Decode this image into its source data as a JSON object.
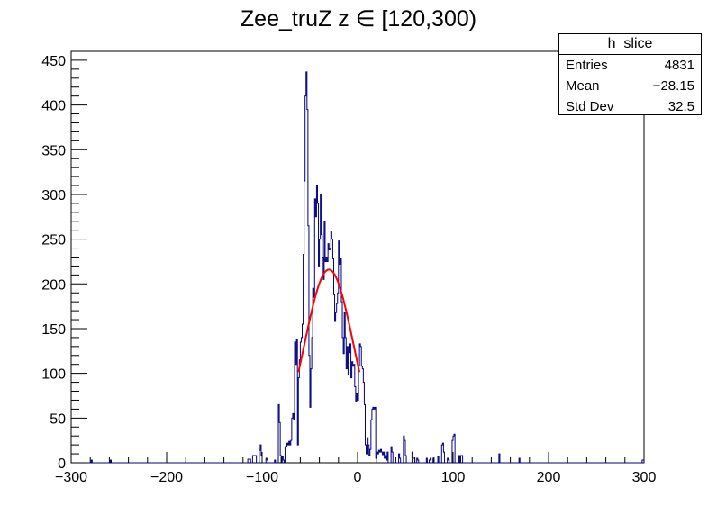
{
  "chart_data": {
    "type": "bar",
    "title": "Zee_truZ z  ∈ [120,300)",
    "xlabel": "",
    "ylabel": "",
    "xlim": [
      -300,
      300
    ],
    "ylim": [
      0,
      460
    ],
    "x_ticks": [
      -300,
      -200,
      -100,
      0,
      100,
      200,
      300
    ],
    "x_tick_labels": [
      "−300",
      "−200",
      "−100",
      "0",
      "100",
      "200",
      "300"
    ],
    "y_ticks": [
      0,
      50,
      100,
      150,
      200,
      250,
      300,
      350,
      400,
      450
    ],
    "y_tick_labels": [
      "0",
      "50",
      "100",
      "150",
      "200",
      "250",
      "300",
      "350",
      "400",
      "450"
    ],
    "grid": false,
    "histogram_color": "#000080",
    "fit_color": "#ff0000",
    "histogram": {
      "name": "h_slice",
      "bins": [
        [
          -300,
          0
        ],
        [
          -279,
          3
        ],
        [
          -278,
          0
        ],
        [
          -259,
          3
        ],
        [
          -258,
          0
        ],
        [
          -115,
          4
        ],
        [
          -112,
          0
        ],
        [
          -110,
          8
        ],
        [
          -106,
          0
        ],
        [
          -103,
          14
        ],
        [
          -102,
          20
        ],
        [
          -101,
          8
        ],
        [
          -100,
          0
        ],
        [
          -96,
          5
        ],
        [
          -95,
          3
        ],
        [
          -94,
          0
        ],
        [
          -87,
          3
        ],
        [
          -86,
          0
        ],
        [
          -83,
          65
        ],
        [
          -82,
          45
        ],
        [
          -81,
          8
        ],
        [
          -80,
          0
        ],
        [
          -79,
          7
        ],
        [
          -78,
          3
        ],
        [
          -77,
          0
        ],
        [
          -76,
          18
        ],
        [
          -74,
          22
        ],
        [
          -73,
          20
        ],
        [
          -72,
          24
        ],
        [
          -71,
          20
        ],
        [
          -70,
          25
        ],
        [
          -69,
          50
        ],
        [
          -68,
          55
        ],
        [
          -67,
          48
        ],
        [
          -66,
          135
        ],
        [
          -65,
          110
        ],
        [
          -64,
          138
        ],
        [
          -63,
          20
        ],
        [
          -62,
          95
        ],
        [
          -61,
          115
        ],
        [
          -60,
          135
        ],
        [
          -59,
          140
        ],
        [
          -58,
          155
        ],
        [
          -57,
          233
        ],
        [
          -56,
          315
        ],
        [
          -55,
          410
        ],
        [
          -54,
          437
        ],
        [
          -53,
          395
        ],
        [
          -52,
          265
        ],
        [
          -51,
          120
        ],
        [
          -50,
          62
        ],
        [
          -49,
          105
        ],
        [
          -48,
          140
        ],
        [
          -47,
          195
        ],
        [
          -46,
          185
        ],
        [
          -45,
          295
        ],
        [
          -44,
          275
        ],
        [
          -43,
          310
        ],
        [
          -42,
          290
        ],
        [
          -41,
          220
        ],
        [
          -40,
          250
        ],
        [
          -39,
          300
        ],
        [
          -38,
          255
        ],
        [
          -37,
          230
        ],
        [
          -36,
          205
        ],
        [
          -35,
          270
        ],
        [
          -34,
          225
        ],
        [
          -33,
          230
        ],
        [
          -32,
          225
        ],
        [
          -31,
          245
        ],
        [
          -30,
          238
        ],
        [
          -29,
          240
        ],
        [
          -28,
          258
        ],
        [
          -27,
          250
        ],
        [
          -26,
          228
        ],
        [
          -25,
          188
        ],
        [
          -24,
          158
        ],
        [
          -23,
          168
        ],
        [
          -22,
          178
        ],
        [
          -21,
          190
        ],
        [
          -20,
          248
        ],
        [
          -19,
          222
        ],
        [
          -18,
          228
        ],
        [
          -17,
          180
        ],
        [
          -16,
          140
        ],
        [
          -15,
          122
        ],
        [
          -14,
          168
        ],
        [
          -13,
          140
        ],
        [
          -12,
          105
        ],
        [
          -11,
          130
        ],
        [
          -10,
          98
        ],
        [
          -9,
          123
        ],
        [
          -8,
          133
        ],
        [
          -7,
          95
        ],
        [
          -6,
          113
        ],
        [
          -5,
          108
        ],
        [
          -4,
          110
        ],
        [
          -3,
          85
        ],
        [
          -2,
          68
        ],
        [
          -1,
          77
        ],
        [
          0,
          70
        ],
        [
          1,
          108
        ],
        [
          2,
          133
        ],
        [
          3,
          130
        ],
        [
          4,
          108
        ],
        [
          5,
          105
        ],
        [
          6,
          90
        ],
        [
          7,
          65
        ],
        [
          8,
          20
        ],
        [
          9,
          10
        ],
        [
          10,
          28
        ],
        [
          11,
          20
        ],
        [
          12,
          8
        ],
        [
          13,
          15
        ],
        [
          14,
          48
        ],
        [
          15,
          60
        ],
        [
          16,
          62
        ],
        [
          17,
          60
        ],
        [
          18,
          62
        ],
        [
          19,
          5
        ],
        [
          20,
          12
        ],
        [
          21,
          10
        ],
        [
          22,
          14
        ],
        [
          23,
          12
        ],
        [
          24,
          15
        ],
        [
          25,
          12
        ],
        [
          26,
          9
        ],
        [
          27,
          12
        ],
        [
          28,
          5
        ],
        [
          29,
          8
        ],
        [
          30,
          3
        ],
        [
          31,
          12
        ],
        [
          32,
          0
        ],
        [
          35,
          18
        ],
        [
          36,
          12
        ],
        [
          37,
          0
        ],
        [
          43,
          10
        ],
        [
          44,
          5
        ],
        [
          45,
          0
        ],
        [
          48,
          30
        ],
        [
          49,
          25
        ],
        [
          50,
          8
        ],
        [
          51,
          0
        ],
        [
          57,
          12
        ],
        [
          58,
          5
        ],
        [
          60,
          0
        ],
        [
          62,
          5
        ],
        [
          63,
          3
        ],
        [
          64,
          0
        ],
        [
          72,
          5
        ],
        [
          73,
          0
        ],
        [
          75,
          3
        ],
        [
          76,
          5
        ],
        [
          77,
          0
        ],
        [
          79,
          5
        ],
        [
          80,
          0
        ],
        [
          84,
          7
        ],
        [
          85,
          0
        ],
        [
          88,
          20
        ],
        [
          89,
          22
        ],
        [
          90,
          12
        ],
        [
          91,
          0
        ],
        [
          94,
          5
        ],
        [
          95,
          3
        ],
        [
          96,
          0
        ],
        [
          99,
          25
        ],
        [
          100,
          30
        ],
        [
          101,
          32
        ],
        [
          102,
          0
        ],
        [
          106,
          8
        ],
        [
          107,
          0
        ],
        [
          108,
          8
        ],
        [
          110,
          0
        ],
        [
          148,
          10
        ],
        [
          149,
          0
        ],
        [
          169,
          5
        ],
        [
          170,
          0
        ],
        [
          298,
          3
        ],
        [
          300,
          0
        ]
      ]
    },
    "fit": {
      "type": "gaussian",
      "x_range": [
        -62,
        2
      ],
      "constant": 216,
      "mean": -30,
      "sigma": 26
    },
    "stats_box": {
      "name": "h_slice",
      "entries_label": "Entries",
      "entries_value": "4831",
      "mean_label": "Mean",
      "mean_value": "−28.15",
      "std_label": "Std Dev",
      "std_value": "32.5"
    }
  }
}
